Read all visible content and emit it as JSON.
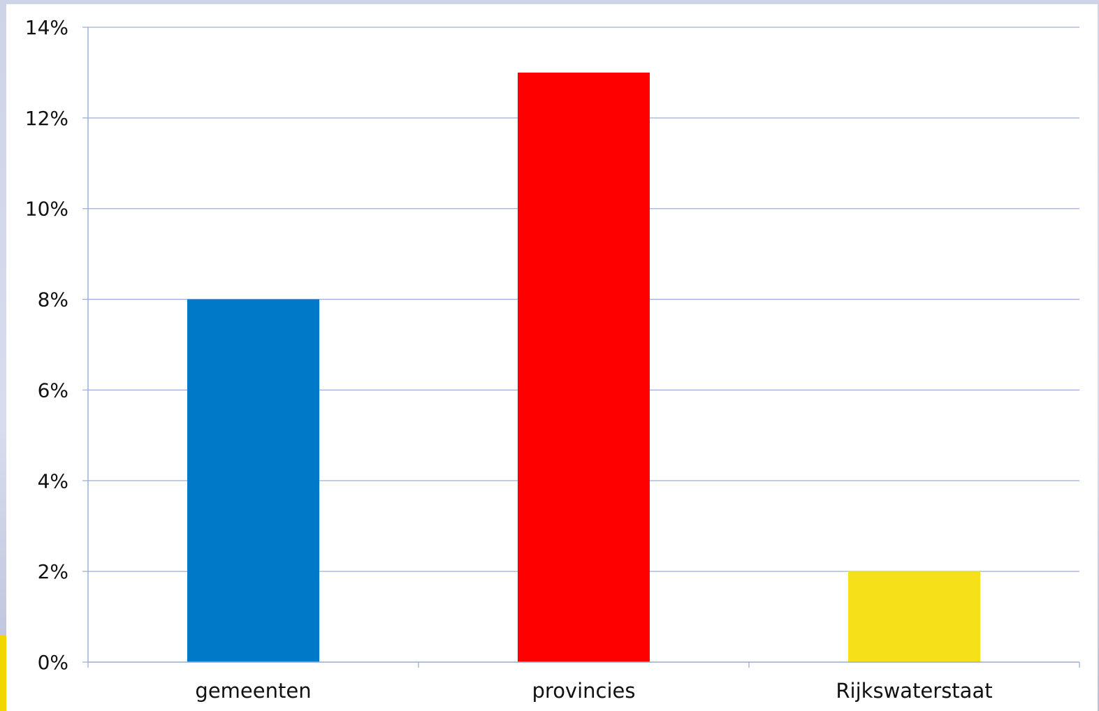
{
  "chart_data": {
    "type": "bar",
    "categories": [
      "gemeenten",
      "provincies",
      "Rijkswaterstaat"
    ],
    "values": [
      8,
      13,
      2
    ],
    "bar_colors": [
      "#007AC8",
      "#FF0000",
      "#F6E01A"
    ],
    "title": "",
    "xlabel": "",
    "ylabel": "",
    "ylim": [
      0,
      14
    ],
    "y_tick_values": [
      0,
      2,
      4,
      6,
      8,
      10,
      12,
      14
    ],
    "y_tick_labels": [
      "0%",
      "2%",
      "4%",
      "6%",
      "8%",
      "10%",
      "12%",
      "14%"
    ],
    "grid": true,
    "gridline_color": "#9fb0d4",
    "axis_color": "#9fb0d4",
    "legend": "none"
  }
}
